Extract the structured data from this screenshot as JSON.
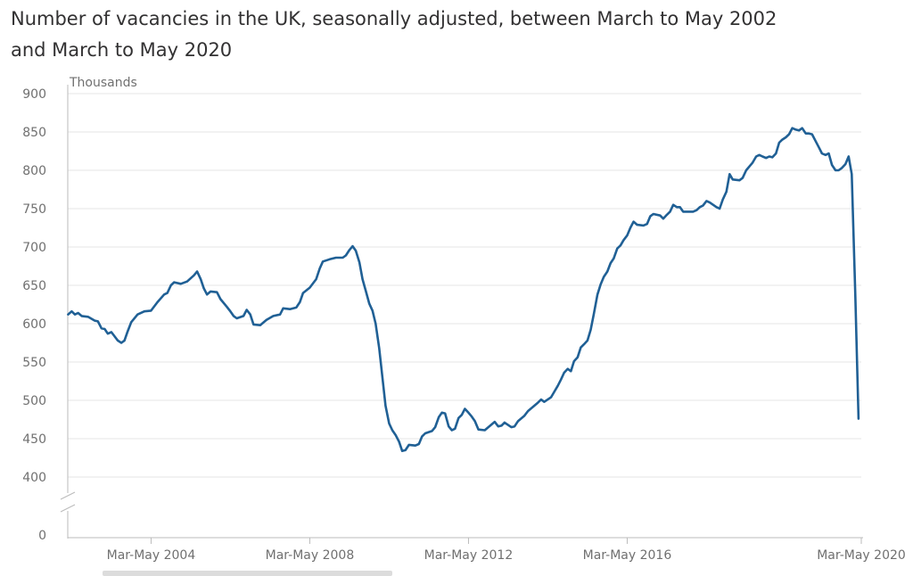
{
  "chart_data": {
    "type": "line",
    "title": "Number of vacancies in the UK, seasonally adjusted, between March to May 2002 and March to May 2020",
    "ylabel": "Thousands",
    "xlabel": "",
    "ylim": [
      0,
      900
    ],
    "y_axis_break": [
      0,
      400
    ],
    "yticks": [
      "900",
      "850",
      "800",
      "750",
      "700",
      "650",
      "600",
      "550",
      "500",
      "450",
      "400",
      "0"
    ],
    "xticks": [
      "Mar-May 2004",
      "Mar-May 2008",
      "Mar-May 2012",
      "Mar-May 2016",
      "Mar-May 2020"
    ],
    "grid": true,
    "line_color": "#206095",
    "series": [
      {
        "values": [
          [
            2002.21,
            612
          ],
          [
            2002.3,
            616
          ],
          [
            2002.38,
            612
          ],
          [
            2002.46,
            614
          ],
          [
            2002.55,
            610
          ],
          [
            2002.71,
            609
          ],
          [
            2002.88,
            604
          ],
          [
            2002.96,
            603
          ],
          [
            2003.05,
            594
          ],
          [
            2003.13,
            593
          ],
          [
            2003.21,
            587
          ],
          [
            2003.3,
            589
          ],
          [
            2003.46,
            578
          ],
          [
            2003.55,
            575
          ],
          [
            2003.63,
            578
          ],
          [
            2003.71,
            590
          ],
          [
            2003.8,
            602
          ],
          [
            2003.96,
            612
          ],
          [
            2004.13,
            616
          ],
          [
            2004.3,
            617
          ],
          [
            2004.46,
            628
          ],
          [
            2004.63,
            638
          ],
          [
            2004.71,
            640
          ],
          [
            2004.8,
            650
          ],
          [
            2004.88,
            654
          ],
          [
            2005.05,
            652
          ],
          [
            2005.21,
            655
          ],
          [
            2005.38,
            663
          ],
          [
            2005.46,
            668
          ],
          [
            2005.55,
            658
          ],
          [
            2005.63,
            646
          ],
          [
            2005.71,
            638
          ],
          [
            2005.8,
            642
          ],
          [
            2005.96,
            641
          ],
          [
            2006.05,
            632
          ],
          [
            2006.21,
            622
          ],
          [
            2006.3,
            616
          ],
          [
            2006.38,
            610
          ],
          [
            2006.46,
            607
          ],
          [
            2006.63,
            610
          ],
          [
            2006.71,
            618
          ],
          [
            2006.8,
            612
          ],
          [
            2006.88,
            599
          ],
          [
            2007.05,
            598
          ],
          [
            2007.21,
            605
          ],
          [
            2007.38,
            610
          ],
          [
            2007.55,
            612
          ],
          [
            2007.63,
            620
          ],
          [
            2007.8,
            619
          ],
          [
            2007.96,
            621
          ],
          [
            2008.05,
            628
          ],
          [
            2008.13,
            640
          ],
          [
            2008.3,
            647
          ],
          [
            2008.46,
            658
          ],
          [
            2008.55,
            672
          ],
          [
            2008.63,
            681
          ],
          [
            2008.8,
            684
          ],
          [
            2008.96,
            686
          ],
          [
            2009.13,
            686
          ],
          [
            2009.21,
            689
          ],
          [
            2009.3,
            696
          ],
          [
            2009.38,
            701
          ],
          [
            2009.46,
            695
          ],
          [
            2009.55,
            680
          ],
          [
            2009.63,
            658
          ],
          [
            2009.71,
            643
          ],
          [
            2009.8,
            626
          ],
          [
            2009.88,
            617
          ],
          [
            2009.96,
            600
          ],
          [
            2010.05,
            568
          ],
          [
            2010.13,
            530
          ],
          [
            2010.21,
            493
          ],
          [
            2010.3,
            470
          ],
          [
            2010.38,
            461
          ],
          [
            2010.46,
            455
          ],
          [
            2010.55,
            446
          ],
          [
            2010.63,
            434
          ],
          [
            2010.71,
            435
          ],
          [
            2010.8,
            442
          ],
          [
            2010.96,
            441
          ],
          [
            2011.05,
            443
          ],
          [
            2011.13,
            453
          ],
          [
            2011.21,
            457
          ],
          [
            2011.38,
            460
          ],
          [
            2011.46,
            465
          ],
          [
            2011.55,
            478
          ],
          [
            2011.63,
            484
          ],
          [
            2011.71,
            483
          ],
          [
            2011.8,
            466
          ],
          [
            2011.88,
            461
          ],
          [
            2011.96,
            463
          ],
          [
            2012.05,
            477
          ],
          [
            2012.13,
            481
          ],
          [
            2012.21,
            489
          ],
          [
            2012.3,
            484
          ],
          [
            2012.38,
            479
          ],
          [
            2012.46,
            473
          ],
          [
            2012.55,
            462
          ],
          [
            2012.71,
            461
          ],
          [
            2012.8,
            465
          ],
          [
            2012.96,
            472
          ],
          [
            2013.05,
            466
          ],
          [
            2013.13,
            467
          ],
          [
            2013.21,
            471
          ],
          [
            2013.38,
            465
          ],
          [
            2013.46,
            466
          ],
          [
            2013.55,
            473
          ],
          [
            2013.71,
            480
          ],
          [
            2013.8,
            486
          ],
          [
            2013.96,
            493
          ],
          [
            2014.05,
            497
          ],
          [
            2014.13,
            501
          ],
          [
            2014.21,
            498
          ],
          [
            2014.38,
            504
          ],
          [
            2014.46,
            511
          ],
          [
            2014.55,
            519
          ],
          [
            2014.63,
            527
          ],
          [
            2014.71,
            536
          ],
          [
            2014.8,
            541
          ],
          [
            2014.88,
            538
          ],
          [
            2014.96,
            551
          ],
          [
            2015.05,
            556
          ],
          [
            2015.13,
            569
          ],
          [
            2015.21,
            573
          ],
          [
            2015.3,
            578
          ],
          [
            2015.38,
            592
          ],
          [
            2015.46,
            613
          ],
          [
            2015.55,
            638
          ],
          [
            2015.63,
            651
          ],
          [
            2015.71,
            661
          ],
          [
            2015.8,
            668
          ],
          [
            2015.88,
            679
          ],
          [
            2015.96,
            685
          ],
          [
            2016.05,
            698
          ],
          [
            2016.13,
            702
          ],
          [
            2016.21,
            709
          ],
          [
            2016.3,
            715
          ],
          [
            2016.38,
            725
          ],
          [
            2016.46,
            733
          ],
          [
            2016.55,
            729
          ],
          [
            2016.71,
            728
          ],
          [
            2016.8,
            730
          ],
          [
            2016.88,
            740
          ],
          [
            2016.96,
            743
          ],
          [
            2017.13,
            741
          ],
          [
            2017.21,
            737
          ],
          [
            2017.3,
            742
          ],
          [
            2017.38,
            746
          ],
          [
            2017.46,
            755
          ],
          [
            2017.55,
            752
          ],
          [
            2017.63,
            752
          ],
          [
            2017.71,
            746
          ],
          [
            2017.96,
            746
          ],
          [
            2018.05,
            748
          ],
          [
            2018.13,
            752
          ],
          [
            2018.21,
            754
          ],
          [
            2018.3,
            760
          ],
          [
            2018.38,
            758
          ],
          [
            2018.55,
            752
          ],
          [
            2018.63,
            750
          ],
          [
            2018.71,
            762
          ],
          [
            2018.8,
            772
          ],
          [
            2018.88,
            795
          ],
          [
            2018.96,
            788
          ],
          [
            2019.13,
            787
          ],
          [
            2019.21,
            790
          ],
          [
            2019.3,
            800
          ],
          [
            2019.38,
            805
          ],
          [
            2019.46,
            810
          ],
          [
            2019.55,
            818
          ],
          [
            2019.63,
            820
          ],
          [
            2019.71,
            818
          ],
          [
            2019.8,
            816
          ],
          [
            2019.88,
            818
          ],
          [
            2019.96,
            817
          ],
          [
            2020.05,
            822
          ],
          [
            2020.13,
            836
          ],
          [
            2020.21,
            840
          ],
          [
            2020.3,
            843
          ],
          [
            2020.38,
            847
          ],
          [
            2020.46,
            855
          ],
          [
            2020.55,
            853
          ],
          [
            2020.63,
            852
          ],
          [
            2020.71,
            855
          ],
          [
            2020.8,
            848
          ],
          [
            2020.88,
            848
          ],
          [
            2020.96,
            847
          ],
          [
            2021.05,
            838
          ],
          [
            2021.13,
            830
          ],
          [
            2021.21,
            822
          ],
          [
            2021.3,
            820
          ],
          [
            2021.38,
            822
          ],
          [
            2021.46,
            807
          ],
          [
            2021.55,
            800
          ],
          [
            2021.63,
            800
          ],
          [
            2021.71,
            803
          ],
          [
            2021.8,
            808
          ],
          [
            2021.88,
            818
          ],
          [
            2021.96,
            795
          ],
          [
            2022.05,
            637
          ],
          [
            2022.13,
            476
          ]
        ]
      }
    ]
  }
}
